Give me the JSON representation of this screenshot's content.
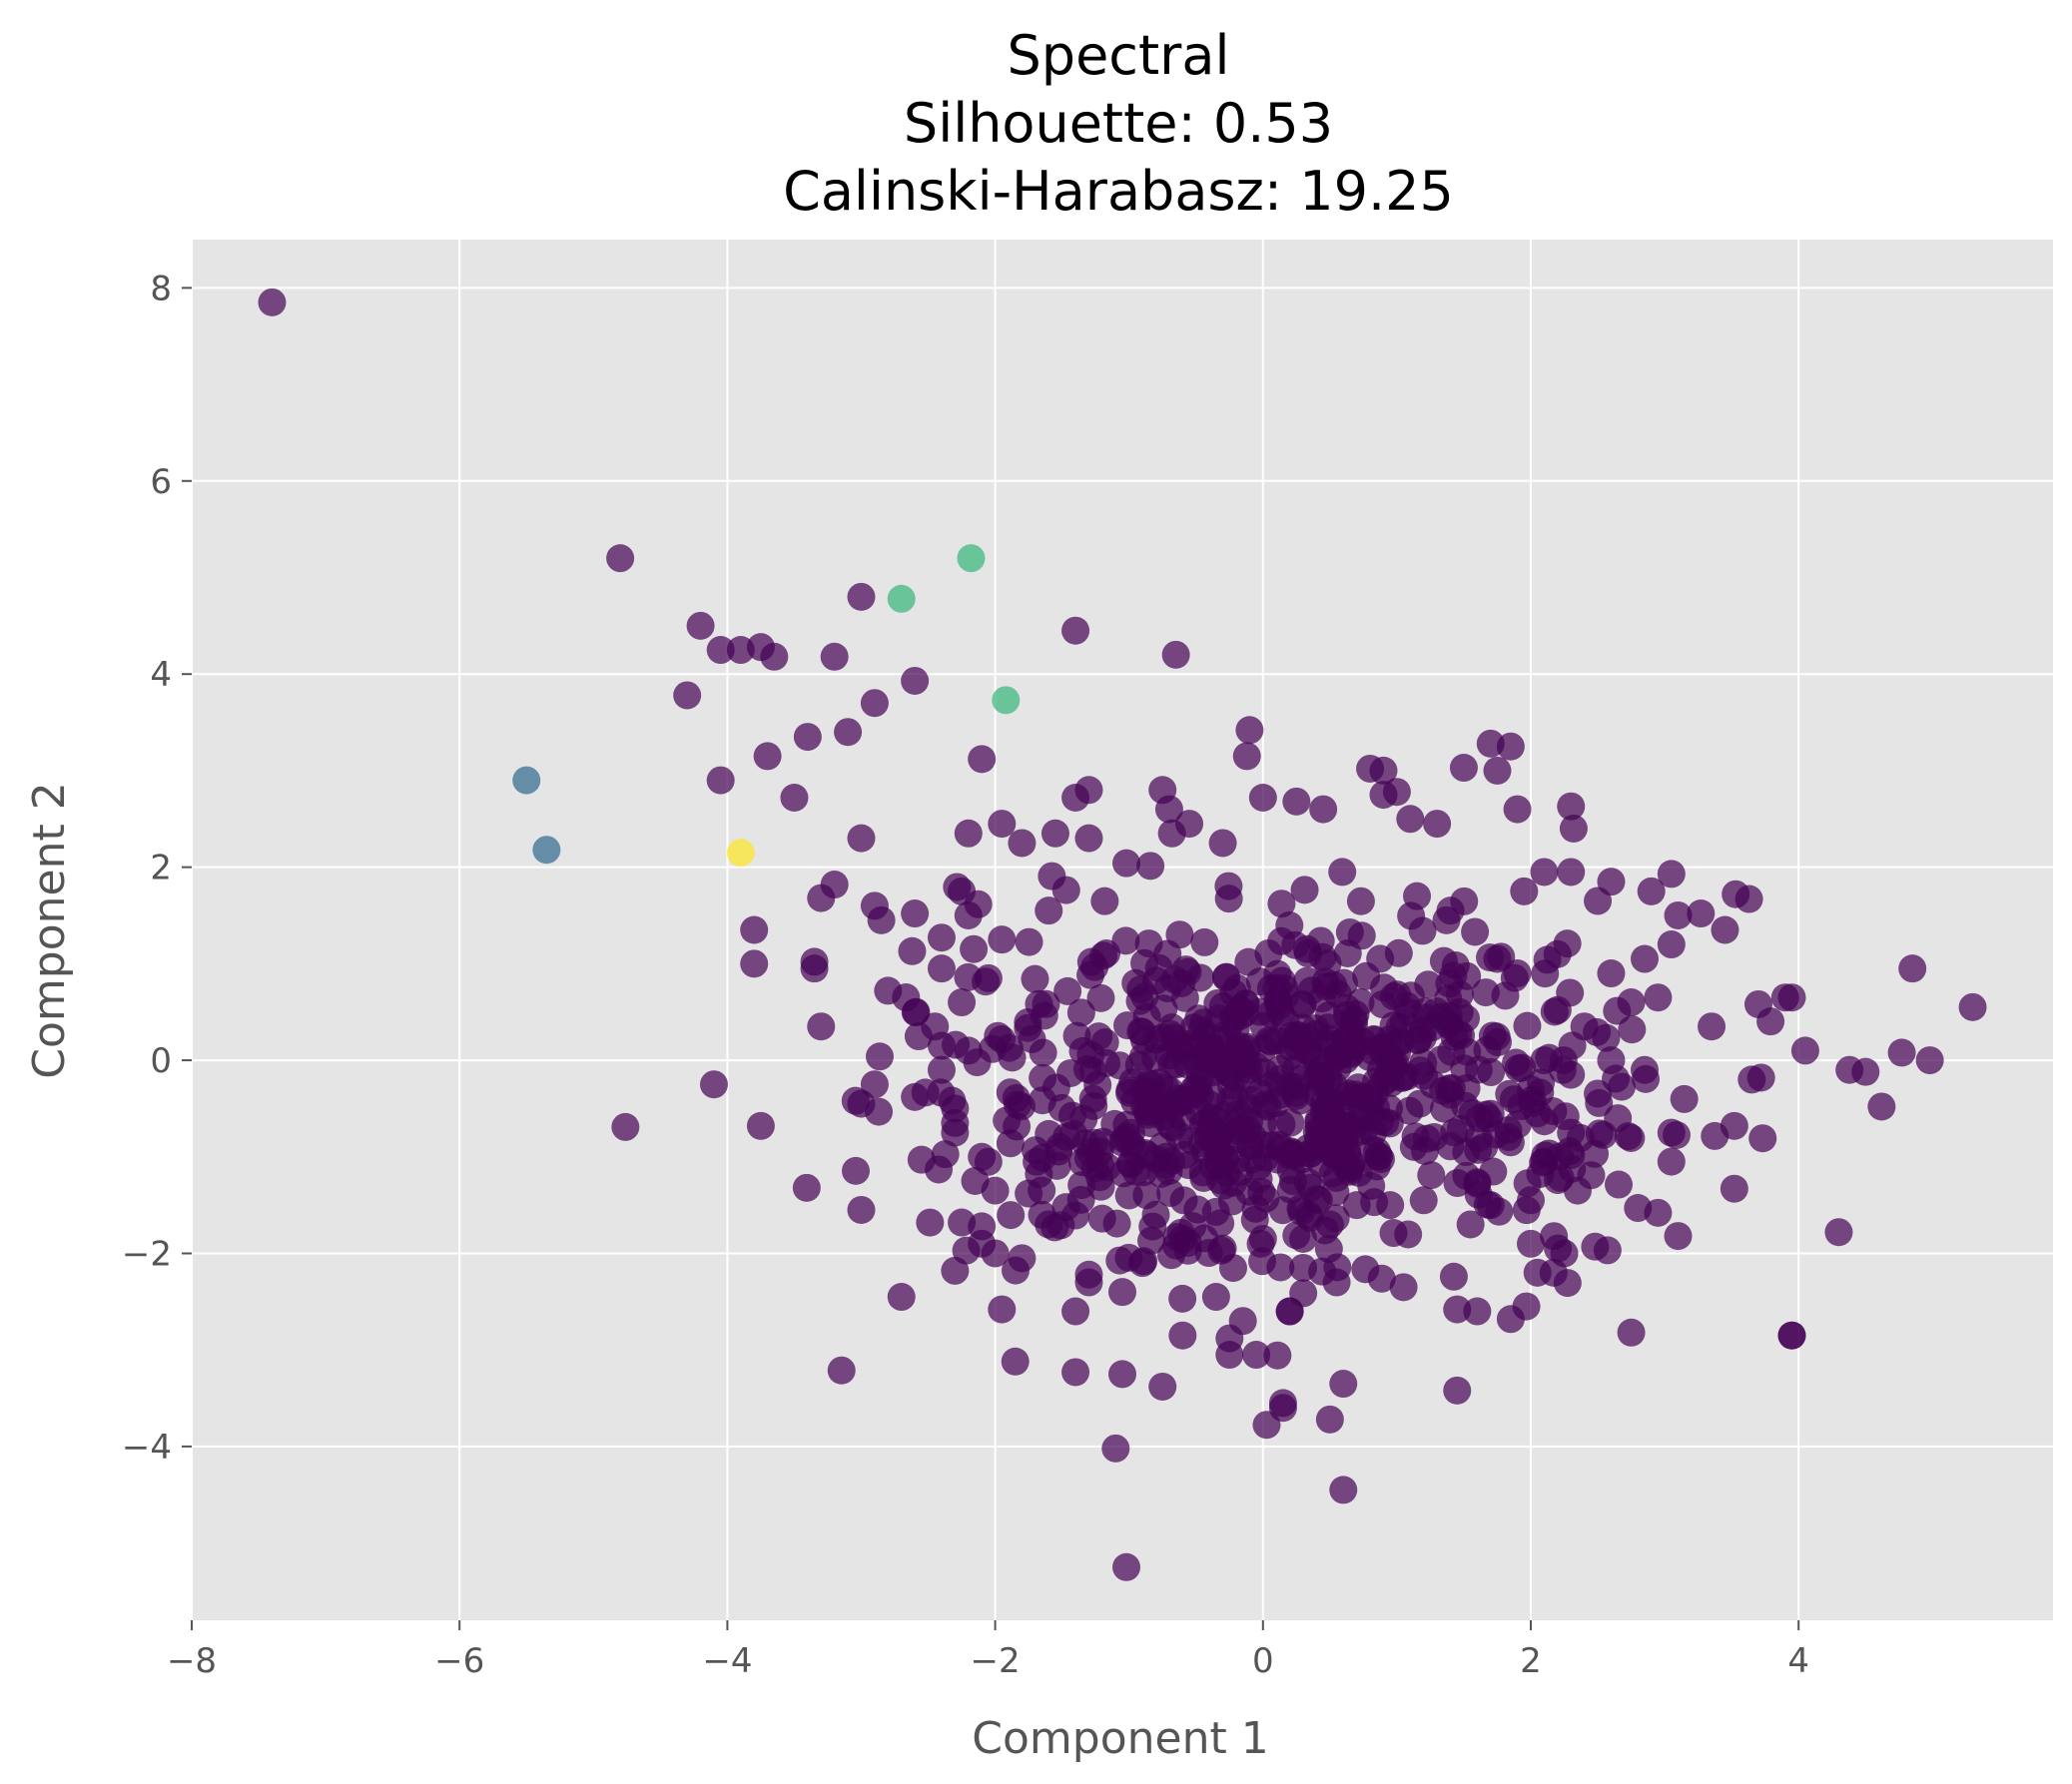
{
  "chart_data": {
    "type": "scatter",
    "title_lines": [
      "Spectral",
      "Silhouette: 0.53",
      "Calinski-Harabasz: 19.25"
    ],
    "xlabel": "Component 1",
    "ylabel": "Component 2",
    "xlim": [
      -8,
      5.9
    ],
    "ylim": [
      -5.8,
      8.5
    ],
    "grid": true,
    "x_ticks": [
      -8,
      -6,
      -4,
      -2,
      0,
      2,
      4
    ],
    "y_ticks": [
      -4,
      -2,
      0,
      2,
      4,
      6,
      8
    ],
    "x_tick_labels": [
      "−8",
      "−6",
      "−4",
      "−2",
      "0",
      "2",
      "4"
    ],
    "y_tick_labels": [
      "−4",
      "−2",
      "0",
      "2",
      "4",
      "6",
      "8"
    ],
    "style": {
      "background": "#e5e5e5",
      "grid_color": "#ffffff",
      "point_opacity": 0.7
    },
    "cluster_colors": [
      "#440154",
      "#31688e",
      "#35b779",
      "#fde725"
    ],
    "series": [
      {
        "cluster": 0,
        "color": "#440154",
        "points": [
          [
            -7.4,
            7.85
          ],
          [
            -4.8,
            5.2
          ],
          [
            -3.0,
            4.8
          ],
          [
            -4.2,
            4.5
          ],
          [
            -4.05,
            4.25
          ],
          [
            -3.9,
            4.25
          ],
          [
            -3.75,
            4.28
          ],
          [
            -3.65,
            4.18
          ],
          [
            -3.2,
            4.18
          ],
          [
            -1.4,
            4.45
          ],
          [
            -0.65,
            4.2
          ],
          [
            -4.3,
            3.78
          ],
          [
            -2.9,
            3.7
          ],
          [
            -2.6,
            3.93
          ],
          [
            -3.4,
            3.35
          ],
          [
            -3.1,
            3.4
          ],
          [
            -3.7,
            3.15
          ],
          [
            -2.1,
            3.12
          ],
          [
            -4.05,
            2.9
          ],
          [
            -3.5,
            2.72
          ],
          [
            -3.0,
            2.3
          ],
          [
            -0.1,
            3.42
          ],
          [
            -0.12,
            3.15
          ],
          [
            0.8,
            3.02
          ],
          [
            0.9,
            3.0
          ],
          [
            1.5,
            3.03
          ],
          [
            1.7,
            3.28
          ],
          [
            1.85,
            3.25
          ],
          [
            1.75,
            3.0
          ],
          [
            1.9,
            2.6
          ],
          [
            2.3,
            2.63
          ],
          [
            2.32,
            2.4
          ],
          [
            -3.8,
            1.35
          ],
          [
            -3.8,
            1.0
          ],
          [
            -3.35,
            1.02
          ],
          [
            -3.35,
            0.95
          ],
          [
            -3.3,
            0.35
          ],
          [
            -3.3,
            1.68
          ],
          [
            -3.2,
            1.82
          ],
          [
            -2.9,
            1.6
          ],
          [
            -2.85,
            1.45
          ],
          [
            -2.6,
            1.52
          ],
          [
            -2.8,
            0.72
          ],
          [
            -4.1,
            -0.25
          ],
          [
            -3.75,
            -0.68
          ],
          [
            -3.0,
            -0.45
          ],
          [
            -2.9,
            -0.25
          ],
          [
            -2.6,
            -0.38
          ],
          [
            -3.0,
            -1.55
          ],
          [
            -2.55,
            -1.03
          ],
          [
            -2.7,
            -2.45
          ],
          [
            -2.3,
            -2.18
          ],
          [
            -1.95,
            -2.58
          ],
          [
            -1.85,
            -3.12
          ],
          [
            -1.4,
            -3.23
          ],
          [
            -1.05,
            -3.25
          ],
          [
            -0.75,
            -3.38
          ],
          [
            -1.3,
            -2.22
          ],
          [
            -1.05,
            -2.4
          ],
          [
            -0.6,
            -2.85
          ],
          [
            -0.35,
            -2.45
          ],
          [
            -0.25,
            -2.88
          ],
          [
            -0.15,
            -2.7
          ],
          [
            -0.25,
            -3.05
          ],
          [
            -0.05,
            -3.05
          ],
          [
            0.2,
            -2.6
          ],
          [
            0.15,
            -3.55
          ],
          [
            0.15,
            -3.6
          ],
          [
            0.5,
            -3.72
          ],
          [
            0.6,
            -3.35
          ],
          [
            0.6,
            -4.45
          ],
          [
            -1.1,
            -4.02
          ],
          [
            -1.02,
            -5.25
          ],
          [
            1.45,
            -3.42
          ],
          [
            1.45,
            -2.58
          ],
          [
            1.6,
            -2.6
          ],
          [
            1.85,
            -2.68
          ],
          [
            2.75,
            -2.82
          ],
          [
            3.95,
            -2.85
          ],
          [
            3.95,
            -2.85
          ],
          [
            4.3,
            -1.78
          ],
          [
            3.1,
            -1.82
          ],
          [
            3.52,
            -1.33
          ],
          [
            2.8,
            -1.53
          ],
          [
            2.95,
            -1.58
          ],
          [
            4.85,
            0.95
          ],
          [
            5.3,
            0.55
          ],
          [
            4.98,
            0.0
          ],
          [
            4.62,
            -0.48
          ],
          [
            4.5,
            -0.12
          ],
          [
            4.38,
            -0.1
          ],
          [
            4.05,
            0.1
          ],
          [
            3.72,
            -0.18
          ],
          [
            3.65,
            -0.2
          ],
          [
            3.7,
            0.58
          ],
          [
            3.9,
            0.65
          ],
          [
            3.95,
            0.65
          ],
          [
            3.53,
            1.72
          ],
          [
            3.63,
            1.67
          ],
          [
            3.45,
            1.35
          ],
          [
            3.27,
            1.52
          ],
          [
            3.05,
            1.93
          ],
          [
            2.3,
            1.95
          ],
          [
            2.5,
            1.65
          ],
          [
            2.85,
            1.05
          ],
          [
            2.95,
            0.65
          ],
          [
            3.35,
            0.35
          ],
          [
            3.52,
            -0.68
          ],
          [
            3.05,
            -0.75
          ],
          [
            3.05,
            -1.05
          ],
          [
            2.25,
            -2.0
          ],
          [
            2.48,
            -1.93
          ],
          [
            2.05,
            -2.2
          ],
          [
            2.17,
            -2.2
          ],
          [
            2.0,
            -1.9
          ],
          [
            1.05,
            -2.35
          ],
          [
            0.95,
            -1.5
          ],
          [
            0.55,
            -2.3
          ],
          [
            0.3,
            -2.15
          ],
          [
            0.2,
            -2.6
          ],
          [
            -1.6,
            1.55
          ],
          [
            -1.8,
            2.25
          ],
          [
            -1.95,
            2.45
          ],
          [
            -2.2,
            2.35
          ],
          [
            -1.55,
            2.35
          ],
          [
            -1.4,
            2.72
          ],
          [
            -1.3,
            2.8
          ],
          [
            -0.75,
            2.8
          ],
          [
            -0.7,
            2.6
          ],
          [
            -0.55,
            2.45
          ],
          [
            -0.68,
            2.35
          ],
          [
            -0.3,
            2.25
          ],
          [
            0.0,
            2.72
          ],
          [
            0.25,
            2.68
          ],
          [
            0.45,
            2.6
          ],
          [
            1.1,
            2.5
          ],
          [
            1.3,
            2.45
          ],
          [
            0.9,
            2.75
          ],
          [
            1.0,
            2.78
          ],
          [
            -1.3,
            2.3
          ],
          [
            -2.25,
            1.75
          ],
          [
            -2.2,
            1.5
          ],
          [
            -2.4,
            1.27
          ],
          [
            -1.95,
            1.25
          ],
          [
            -2.05,
            0.85
          ],
          [
            -2.25,
            0.6
          ],
          [
            -2.4,
            0.95
          ],
          [
            -2.45,
            0.35
          ],
          [
            -2.4,
            0.15
          ],
          [
            -2.2,
            0.1
          ],
          [
            -2.4,
            -0.1
          ],
          [
            -2.3,
            -0.5
          ],
          [
            -2.3,
            -0.65
          ],
          [
            -2.3,
            -0.75
          ],
          [
            -2.1,
            -1.0
          ],
          [
            -2.15,
            -1.25
          ],
          [
            -2.0,
            -1.35
          ],
          [
            -2.25,
            -1.68
          ],
          [
            -2.1,
            -1.72
          ],
          [
            -2.1,
            -1.9
          ],
          [
            -2.0,
            -2.0
          ],
          [
            -1.8,
            -2.05
          ],
          [
            -1.65,
            -1.6
          ],
          [
            -1.75,
            -1.38
          ],
          [
            -1.6,
            -1.7
          ],
          [
            -1.3,
            -2.3
          ],
          [
            -1.4,
            -2.6
          ],
          [
            -0.9,
            -2.1
          ],
          [
            1.55,
            -1.7
          ],
          [
            1.6,
            -1.28
          ],
          [
            1.65,
            -0.9
          ],
          [
            1.85,
            -0.85
          ],
          [
            2.05,
            -0.55
          ],
          [
            2.0,
            -0.3
          ],
          [
            2.1,
            0.0
          ],
          [
            2.3,
            -0.15
          ],
          [
            2.6,
            0.0
          ],
          [
            2.4,
            0.35
          ],
          [
            2.2,
            0.52
          ],
          [
            1.9,
            0.9
          ],
          [
            1.75,
            1.05
          ],
          [
            1.4,
            1.55
          ],
          [
            1.15,
            1.7
          ],
          [
            1.95,
            1.75
          ],
          [
            2.1,
            1.95
          ],
          [
            2.6,
            1.85
          ],
          [
            2.9,
            1.75
          ],
          [
            3.1,
            1.5
          ],
          [
            3.05,
            1.2
          ],
          [
            2.6,
            0.9
          ],
          [
            2.75,
            0.6
          ],
          [
            2.85,
            -0.1
          ],
          [
            2.65,
            -0.6
          ],
          [
            2.3,
            -0.75
          ],
          [
            2.1,
            -1.05
          ],
          [
            2.35,
            -1.35
          ],
          [
            2.0,
            -1.45
          ],
          [
            1.7,
            -1.5
          ],
          [
            1.2,
            -1.45
          ],
          [
            0.85,
            -1.1
          ],
          [
            0.7,
            -1.5
          ],
          [
            0.5,
            -1.7
          ],
          [
            0.3,
            -1.85
          ],
          [
            0.0,
            -1.85
          ],
          [
            -0.3,
            -1.95
          ],
          [
            -0.6,
            -1.85
          ],
          [
            -0.8,
            -1.6
          ],
          [
            -1.0,
            -1.4
          ]
        ]
      },
      {
        "cluster": 1,
        "color": "#31688e",
        "points": [
          [
            -5.5,
            2.9
          ],
          [
            -5.35,
            2.18
          ]
        ]
      },
      {
        "cluster": 2,
        "color": "#35b779",
        "points": [
          [
            -2.7,
            4.78
          ],
          [
            -2.18,
            5.2
          ],
          [
            -1.92,
            3.73
          ]
        ]
      },
      {
        "cluster": 3,
        "color": "#fde725",
        "points": [
          [
            -3.9,
            2.15
          ]
        ]
      }
    ],
    "dense_cluster": {
      "cluster": 0,
      "color": "#440154",
      "center": [
        0.1,
        -0.3
      ],
      "spread": [
        1.2,
        0.85
      ],
      "count": 760,
      "seed": 7
    }
  }
}
